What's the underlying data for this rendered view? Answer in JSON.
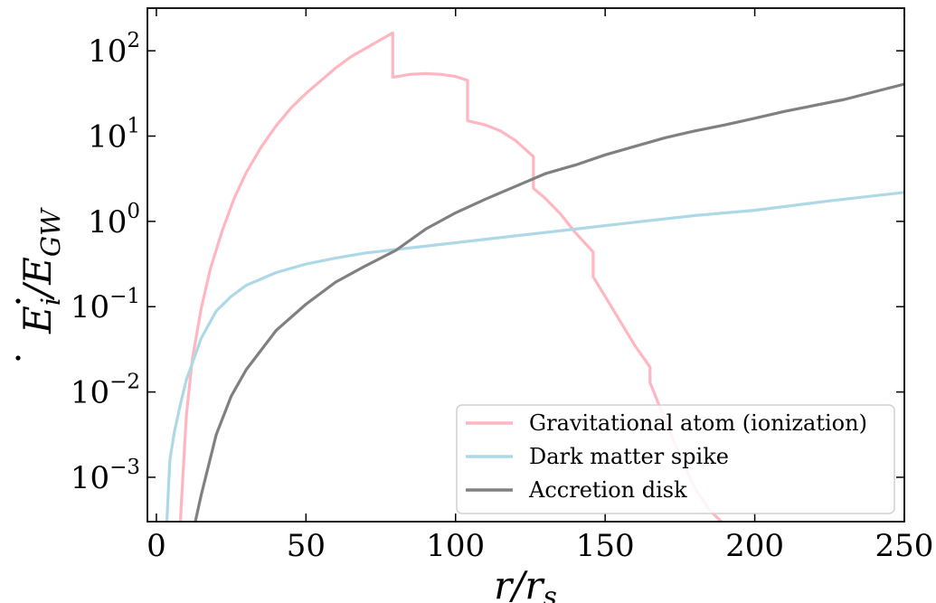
{
  "chart_data": {
    "type": "line",
    "title": "",
    "xlabel": "r/r_s",
    "ylabel": "Ė_i/Ė_GW",
    "xlim": [
      -3,
      250
    ],
    "ylim_log10": [
      -3.52,
      2.5
    ],
    "yscale": "log",
    "x_ticks": [
      0,
      50,
      100,
      150,
      200,
      250
    ],
    "y_ticks": [
      {
        "base": "10",
        "exp": "2",
        "value": 100
      },
      {
        "base": "10",
        "exp": "1",
        "value": 10
      },
      {
        "base": "10",
        "exp": "0",
        "value": 1
      },
      {
        "base": "10",
        "exp": "−1",
        "value": 0.1
      },
      {
        "base": "10",
        "exp": "−2",
        "value": 0.01
      },
      {
        "base": "10",
        "exp": "−3",
        "value": 0.001
      }
    ],
    "legend_position": "lower-right",
    "grid": false,
    "series": [
      {
        "name": "Gravitational atom (ionization)",
        "color": "#ffb6c1",
        "points": [
          [
            8,
            0.0003
          ],
          [
            10,
            0.0052
          ],
          [
            12,
            0.024
          ],
          [
            15,
            0.0955
          ],
          [
            18,
            0.275
          ],
          [
            22,
            0.776
          ],
          [
            26,
            1.86
          ],
          [
            30,
            3.72
          ],
          [
            35,
            7.41
          ],
          [
            40,
            13.2
          ],
          [
            45,
            21.4
          ],
          [
            50,
            31.6
          ],
          [
            55,
            44.7
          ],
          [
            60,
            63.1
          ],
          [
            65,
            85.1
          ],
          [
            70,
            107
          ],
          [
            75,
            135
          ],
          [
            79,
            162
          ],
          [
            79,
            49
          ],
          [
            85,
            53
          ],
          [
            90,
            54
          ],
          [
            95,
            53
          ],
          [
            100,
            50
          ],
          [
            104,
            45
          ],
          [
            104,
            15.1
          ],
          [
            110,
            13.5
          ],
          [
            115,
            11.5
          ],
          [
            120,
            8.9
          ],
          [
            126,
            5.75
          ],
          [
            126,
            2.45
          ],
          [
            130,
            1.86
          ],
          [
            135,
            1.23
          ],
          [
            140,
            0.741
          ],
          [
            146,
            0.437
          ],
          [
            146,
            0.224
          ],
          [
            150,
            0.132
          ],
          [
            155,
            0.0676
          ],
          [
            160,
            0.0347
          ],
          [
            165,
            0.0195
          ],
          [
            165,
            0.0129
          ],
          [
            170,
            0.00468
          ],
          [
            175,
            0.00178
          ],
          [
            180,
            0.000741
          ],
          [
            185,
            0.000407
          ],
          [
            189,
            0.0003
          ]
        ]
      },
      {
        "name": "Dark matter spike",
        "color": "#add8e6",
        "points": [
          [
            3.5,
            0.0003
          ],
          [
            4.5,
            0.00158
          ],
          [
            6,
            0.00339
          ],
          [
            8,
            0.00708
          ],
          [
            10,
            0.0138
          ],
          [
            15,
            0.0427
          ],
          [
            20,
            0.0891
          ],
          [
            25,
            0.132
          ],
          [
            30,
            0.178
          ],
          [
            40,
            0.251
          ],
          [
            50,
            0.316
          ],
          [
            60,
            0.372
          ],
          [
            70,
            0.427
          ],
          [
            80,
            0.468
          ],
          [
            100,
            0.562
          ],
          [
            120,
            0.676
          ],
          [
            140,
            0.813
          ],
          [
            160,
            0.977
          ],
          [
            180,
            1.17
          ],
          [
            200,
            1.35
          ],
          [
            225,
            1.74
          ],
          [
            250,
            2.19
          ]
        ]
      },
      {
        "name": "Accretion disk",
        "color": "#808080",
        "points": [
          [
            13,
            0.0003
          ],
          [
            15,
            0.00062
          ],
          [
            20,
            0.00316
          ],
          [
            25,
            0.00891
          ],
          [
            30,
            0.0182
          ],
          [
            40,
            0.0525
          ],
          [
            50,
            0.107
          ],
          [
            60,
            0.195
          ],
          [
            70,
            0.302
          ],
          [
            80,
            0.457
          ],
          [
            90,
            0.813
          ],
          [
            100,
            1.26
          ],
          [
            110,
            1.82
          ],
          [
            120,
            2.57
          ],
          [
            130,
            3.63
          ],
          [
            140,
            4.57
          ],
          [
            150,
            6.03
          ],
          [
            160,
            7.59
          ],
          [
            170,
            9.55
          ],
          [
            180,
            11.5
          ],
          [
            190,
            13.5
          ],
          [
            200,
            16.2
          ],
          [
            210,
            19.5
          ],
          [
            220,
            22.9
          ],
          [
            230,
            26.9
          ],
          [
            240,
            33.1
          ],
          [
            250,
            40.7
          ]
        ]
      }
    ]
  }
}
